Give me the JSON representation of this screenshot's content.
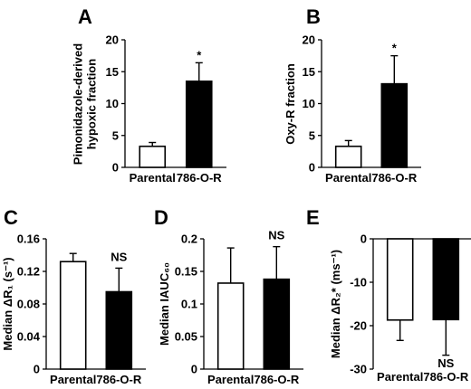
{
  "chart_data": [
    {
      "panel": "A",
      "type": "bar",
      "categories": [
        "Parental",
        "786-O-R"
      ],
      "values": [
        3.3,
        13.5
      ],
      "errors": [
        0.6,
        2.9
      ],
      "bar_colors": [
        "#ffffff",
        "#000000"
      ],
      "ylabel_lines": [
        "Pimonidazole-derived",
        "hypoxic fraction"
      ],
      "ylim": [
        0,
        20
      ],
      "yticks": [
        0,
        5,
        10,
        15,
        20
      ],
      "ytick_labels": [
        "0",
        "5",
        "10",
        "15",
        "20"
      ],
      "annotations": [
        {
          "text": "*",
          "category": "786-O-R"
        }
      ]
    },
    {
      "panel": "B",
      "type": "bar",
      "categories": [
        "Parental",
        "786-O-R"
      ],
      "values": [
        3.3,
        13.1
      ],
      "errors": [
        0.9,
        4.4
      ],
      "bar_colors": [
        "#ffffff",
        "#000000"
      ],
      "ylabel_lines": [
        "Oxy-R fraction"
      ],
      "ylim": [
        0,
        20
      ],
      "yticks": [
        0,
        5,
        10,
        15,
        20
      ],
      "ytick_labels": [
        "0",
        "5",
        "10",
        "15",
        "20"
      ],
      "annotations": [
        {
          "text": "*",
          "category": "786-O-R"
        }
      ]
    },
    {
      "panel": "C",
      "type": "bar",
      "categories": [
        "Parental",
        "786-O-R"
      ],
      "values": [
        0.132,
        0.095
      ],
      "errors": [
        0.01,
        0.029
      ],
      "bar_colors": [
        "#ffffff",
        "#000000"
      ],
      "ylabel_lines": [
        "Median ΔR₁ (s⁻¹)"
      ],
      "ylim": [
        0,
        0.16
      ],
      "yticks": [
        0,
        0.04,
        0.08,
        0.12,
        0.16
      ],
      "ytick_labels": [
        "0",
        "0.04",
        "0.08",
        "0.12",
        "0.16"
      ],
      "annotations": [
        {
          "text": "NS",
          "category": "786-O-R"
        }
      ]
    },
    {
      "panel": "D",
      "type": "bar",
      "categories": [
        "Parental",
        "786-O-R"
      ],
      "values": [
        0.132,
        0.138
      ],
      "errors": [
        0.054,
        0.05
      ],
      "bar_colors": [
        "#ffffff",
        "#000000"
      ],
      "ylabel_lines": [
        "Median IAUC₆₀"
      ],
      "ylim": [
        0,
        0.2
      ],
      "yticks": [
        0,
        0.05,
        0.1,
        0.15,
        0.2
      ],
      "ytick_labels": [
        "0",
        "0.05",
        "0.1",
        "0.15",
        "0.2"
      ],
      "annotations": [
        {
          "text": "NS",
          "category": "786-O-R"
        }
      ]
    },
    {
      "panel": "E",
      "type": "bar",
      "categories": [
        "Parental",
        "786-O-R"
      ],
      "values": [
        -18.7,
        -18.6
      ],
      "errors": [
        4.7,
        8.2
      ],
      "bar_colors": [
        "#ffffff",
        "#000000"
      ],
      "ylabel_lines": [
        "Median ΔR₂* (ms⁻¹)"
      ],
      "ylim": [
        -30,
        0
      ],
      "yticks": [
        -30,
        -20,
        -10,
        0
      ],
      "ytick_labels": [
        "-30",
        "-20",
        "-10",
        "0"
      ],
      "annotations": [
        {
          "text": "NS",
          "category": "786-O-R",
          "position": "below"
        }
      ]
    }
  ]
}
